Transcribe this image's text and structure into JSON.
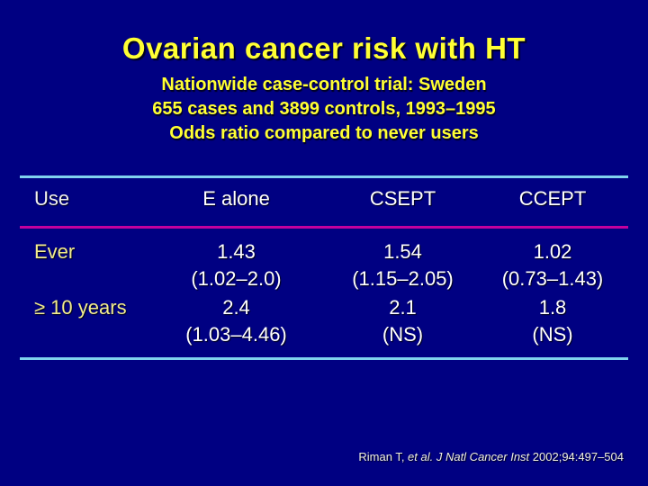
{
  "slide": {
    "title": "Ovarian cancer risk with HT",
    "subtitle_lines": [
      "Nationwide case-control trial: Sweden",
      "655 cases and 3899 controls, 1993–1995",
      "Odds ratio compared to never users"
    ]
  },
  "table": {
    "headers": [
      "Use",
      "E alone",
      "CSEPT",
      "CCEPT"
    ],
    "rows": [
      {
        "label": "Ever",
        "cells": [
          {
            "value": "1.43",
            "ci": "(1.02–2.0)"
          },
          {
            "value": "1.54",
            "ci": "(1.15–2.05)"
          },
          {
            "value": "1.02",
            "ci": "(0.73–1.43)"
          }
        ]
      },
      {
        "label": "≥ 10 years",
        "cells": [
          {
            "value": "2.4",
            "ci": "(1.03–4.46)"
          },
          {
            "value": "2.1",
            "ci": "(NS)"
          },
          {
            "value": "1.8",
            "ci": "(NS)"
          }
        ]
      }
    ]
  },
  "citation": {
    "prefix": "Riman T, ",
    "italic": "et al. J Natl Cancer Inst",
    "suffix": " 2002;94:497–504"
  },
  "colors": {
    "background": "#000082",
    "title_yellow": "#FFFF33",
    "label_yellow": "#F2EC8E",
    "value_white": "#FFFFFF",
    "header_white": "#F0F0F0",
    "line_cyan": "#7FD2EE",
    "line_magenta": "#C4009E",
    "citation_white": "#EFEFE2"
  }
}
